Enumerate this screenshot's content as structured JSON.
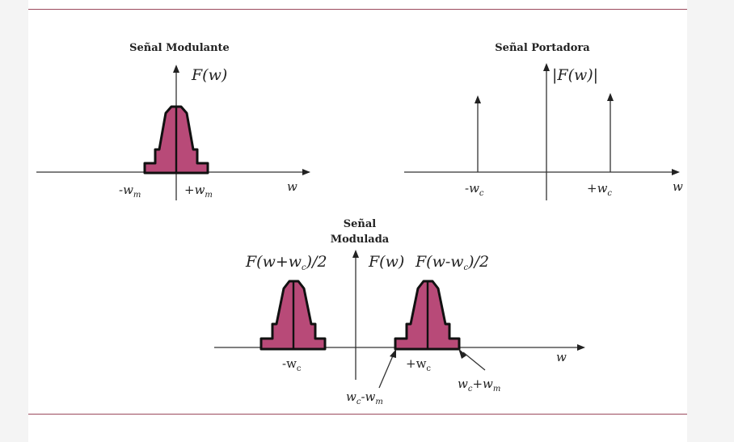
{
  "modulante": {
    "title": "Señal  Modulante",
    "fn": "F(w)",
    "neg": "-w",
    "neg_sub": "m",
    "pos": "+w",
    "pos_sub": "m",
    "axis": "w"
  },
  "portadora": {
    "title": "Señal Portadora",
    "fn": "|F(w)|",
    "neg": "-w",
    "neg_sub": "c",
    "pos": "+w",
    "pos_sub": "c",
    "axis": "w"
  },
  "modulada": {
    "title_line1": "Señal",
    "title_line2": "Modulada",
    "fn_left_a": "F(w+w",
    "fn_left_sub": "c",
    "fn_left_b": ")/2",
    "fn_center": "F(w)",
    "fn_right_a": "F(w-w",
    "fn_right_sub": "c",
    "fn_right_b": ")/2",
    "neg": "-w",
    "neg_sub": "c",
    "pos": "+w",
    "pos_sub": "c",
    "axis": "w",
    "lower": "w",
    "lower_sub_a": "c",
    "lower_mid": "-w",
    "lower_sub_b": "m",
    "upper": "w",
    "upper_sub_a": "c",
    "upper_mid": "+w",
    "upper_sub_b": "m"
  },
  "colors": {
    "spectrum_fill": "#b84a78",
    "rule": "#9b4a5c"
  }
}
